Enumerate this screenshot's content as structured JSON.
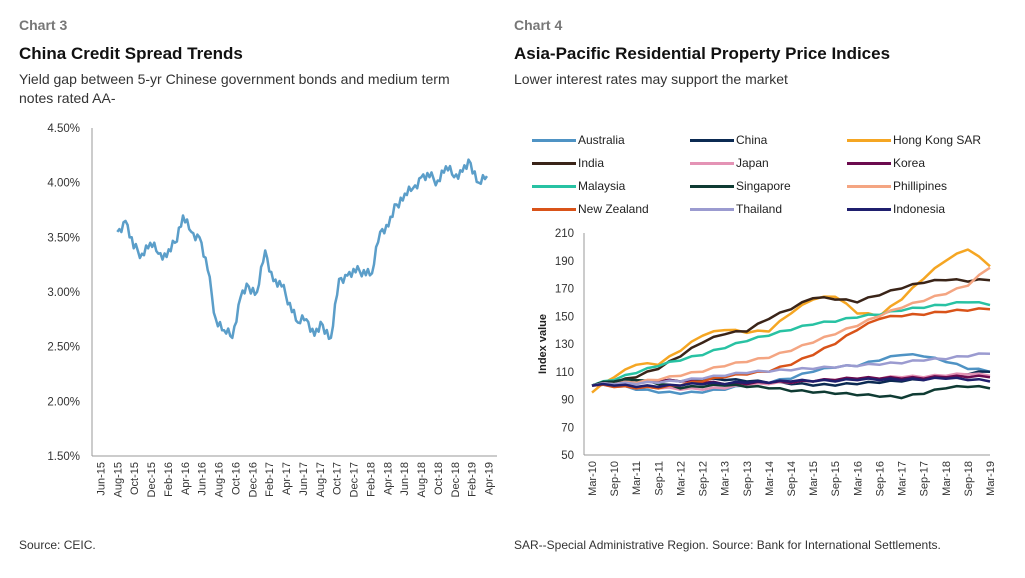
{
  "left": {
    "chart_label": "Chart 3",
    "title": "China Credit Spread Trends",
    "subtitle": "Yield gap between 5-yr Chinese government bonds and medium term notes rated AA-",
    "source": "Source: CEIC."
  },
  "right": {
    "chart_label": "Chart 4",
    "title": "Asia-Pacific Residential Property Price Indices",
    "subtitle": "Lower interest rates may support the market",
    "source": "SAR--Special Administrative Region. Source: Bank for International Settlements."
  },
  "colors": {
    "line_left": "#5b9ec9",
    "axis": "#999999"
  },
  "chart_data": [
    {
      "type": "line",
      "title": "China Credit Spread Trends",
      "ylim": [
        1.5,
        4.5
      ],
      "yticks": [
        "1.50%",
        "2.00%",
        "2.50%",
        "3.00%",
        "3.50%",
        "4.00%",
        "4.50%"
      ],
      "xticks": [
        "Jun-15",
        "Aug-15",
        "Oct-15",
        "Dec-15",
        "Feb-16",
        "Apr-16",
        "Jun-16",
        "Aug-16",
        "Oct-16",
        "Dec-16",
        "Feb-17",
        "Apr-17",
        "Jun-17",
        "Aug-17",
        "Oct-17",
        "Dec-17",
        "Feb-18",
        "Apr-18",
        "Jun-18",
        "Aug-18",
        "Oct-18",
        "Dec-18",
        "Feb-19",
        "Apr-19"
      ],
      "x": [
        "Aug-15",
        "Sep-15",
        "Oct-15",
        "Nov-15",
        "Dec-15",
        "Jan-16",
        "Feb-16",
        "Mar-16",
        "Apr-16",
        "May-16",
        "Jun-16",
        "Jul-16",
        "Aug-16",
        "Sep-16",
        "Oct-16",
        "Nov-16",
        "Dec-16",
        "Jan-17",
        "Feb-17",
        "Mar-17",
        "Apr-17",
        "May-17",
        "Jun-17",
        "Jul-17",
        "Aug-17",
        "Sep-17",
        "Oct-17",
        "Nov-17",
        "Dec-17",
        "Jan-18",
        "Feb-18",
        "Mar-18",
        "Apr-18",
        "May-18",
        "Jun-18",
        "Jul-18",
        "Aug-18",
        "Sep-18",
        "Oct-18",
        "Nov-18",
        "Dec-18",
        "Jan-19",
        "Feb-19",
        "Mar-19",
        "Apr-19",
        "May-19"
      ],
      "series": [
        {
          "values": [
            3.55,
            3.65,
            3.4,
            3.35,
            3.45,
            3.35,
            3.32,
            3.45,
            3.7,
            3.55,
            3.5,
            3.2,
            2.75,
            2.65,
            2.58,
            2.95,
            3.05,
            3.0,
            3.38,
            3.1,
            3.05,
            2.9,
            2.72,
            2.75,
            2.6,
            2.7,
            2.58,
            3.12,
            3.15,
            3.18,
            3.2,
            3.17,
            3.55,
            3.6,
            3.8,
            3.9,
            3.95,
            4.05,
            4.05,
            4.02,
            4.15,
            4.05,
            4.1,
            4.18,
            4.0,
            4.06
          ]
        }
      ]
    },
    {
      "type": "line",
      "title": "Asia-Pacific Residential Property Price Indices",
      "ylabel": "Index value",
      "ylim": [
        50,
        210
      ],
      "yticks": [
        50,
        70,
        90,
        110,
        130,
        150,
        170,
        190,
        210
      ],
      "x": [
        "Mar-10",
        "Sep-10",
        "Mar-11",
        "Sep-11",
        "Mar-12",
        "Sep-12",
        "Mar-13",
        "Sep-13",
        "Mar-14",
        "Sep-14",
        "Mar-15",
        "Sep-15",
        "Mar-16",
        "Sep-16",
        "Mar-17",
        "Sep-17",
        "Mar-18",
        "Sep-18",
        "Mar-19"
      ],
      "legend_position": "top",
      "series": [
        {
          "name": "Australia",
          "color": "#4f93c4",
          "values": [
            100,
            100,
            97,
            95,
            94,
            95,
            97,
            100,
            102,
            105,
            110,
            113,
            114,
            118,
            122,
            121,
            117,
            112,
            110
          ]
        },
        {
          "name": "China",
          "color": "#0b2a52",
          "values": [
            100,
            101,
            102,
            103,
            103,
            104,
            104,
            103,
            102,
            101,
            100,
            100,
            101,
            102,
            103,
            104,
            106,
            108,
            110
          ]
        },
        {
          "name": "Hong Kong SAR",
          "color": "#f5a623",
          "values": [
            95,
            106,
            115,
            115,
            125,
            136,
            140,
            138,
            139,
            152,
            162,
            164,
            152,
            150,
            162,
            177,
            190,
            198,
            186
          ]
        },
        {
          "name": "India",
          "color": "#3a2418",
          "values": [
            100,
            102,
            106,
            112,
            121,
            131,
            137,
            139,
            148,
            155,
            163,
            162,
            160,
            165,
            170,
            174,
            176,
            175,
            176
          ]
        },
        {
          "name": "Japan",
          "color": "#e493b5",
          "values": [
            100,
            99,
            98,
            98,
            97,
            97,
            98,
            100,
            101,
            102,
            103,
            104,
            104,
            105,
            106,
            106,
            107,
            108,
            107
          ]
        },
        {
          "name": "Korea",
          "color": "#6b0a4e",
          "values": [
            100,
            101,
            102,
            103,
            103,
            102,
            101,
            101,
            102,
            102,
            103,
            104,
            105,
            105,
            105,
            105,
            106,
            106,
            106
          ]
        },
        {
          "name": "Malaysia",
          "color": "#28c2a3",
          "values": [
            100,
            104,
            109,
            114,
            118,
            122,
            127,
            132,
            136,
            140,
            144,
            146,
            149,
            151,
            154,
            156,
            158,
            160,
            158
          ]
        },
        {
          "name": "Singapore",
          "color": "#0f3b33",
          "values": [
            100,
            103,
            104,
            101,
            98,
            99,
            100,
            99,
            98,
            96,
            95,
            94,
            93,
            92,
            91,
            94,
            98,
            99,
            98
          ]
        },
        {
          "name": "Phillipines",
          "color": "#f4a582",
          "values": [
            100,
            101,
            102,
            104,
            107,
            110,
            114,
            117,
            120,
            125,
            131,
            137,
            143,
            150,
            156,
            161,
            166,
            172,
            185
          ]
        },
        {
          "name": "New Zealand",
          "color": "#d95319",
          "values": [
            100,
            99,
            98,
            98,
            100,
            103,
            106,
            108,
            110,
            115,
            122,
            130,
            140,
            148,
            150,
            151,
            153,
            154,
            155
          ]
        },
        {
          "name": "Thailand",
          "color": "#9b9bd0",
          "values": [
            100,
            101,
            101,
            102,
            103,
            105,
            107,
            109,
            110,
            111,
            112,
            113,
            114,
            115,
            116,
            118,
            119,
            121,
            123
          ]
        },
        {
          "name": "Indonesia",
          "color": "#1f1f6e",
          "values": [
            100,
            100,
            99,
            99,
            100,
            101,
            101,
            102,
            102,
            103,
            103,
            103,
            104,
            104,
            104,
            104,
            105,
            104,
            103
          ]
        }
      ]
    }
  ]
}
